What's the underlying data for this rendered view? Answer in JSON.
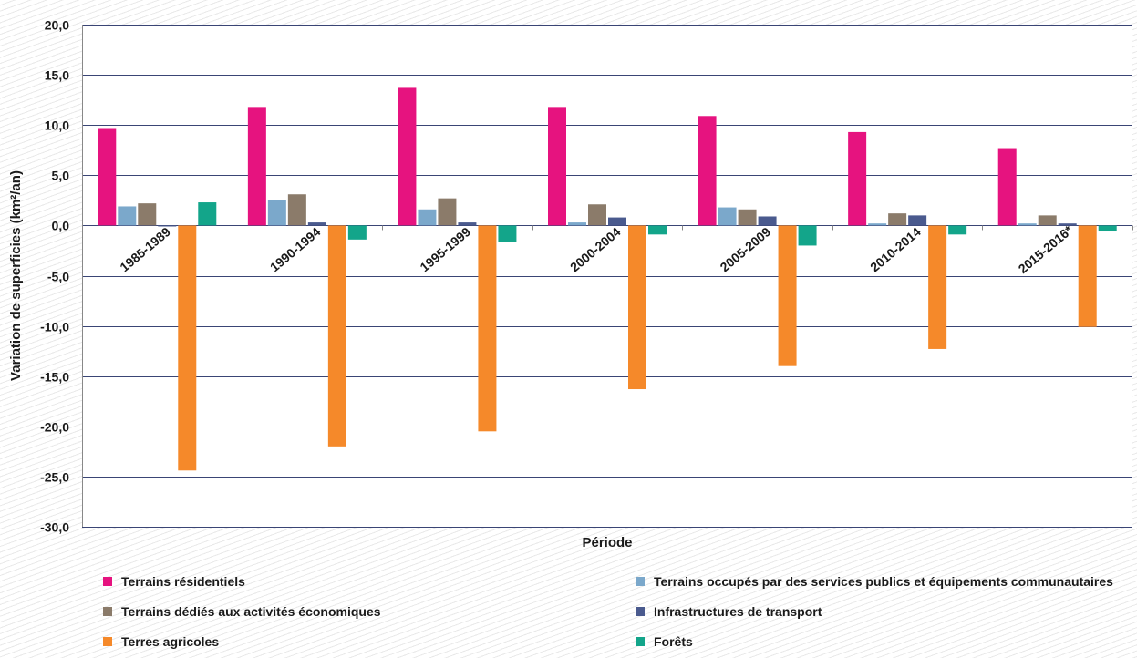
{
  "chart_data": {
    "type": "bar",
    "title": "",
    "xlabel": "Période",
    "ylabel": "Variation de superficies (km²/an)",
    "ylim": [
      -30,
      20
    ],
    "ytick_step": 5,
    "grid": true,
    "legend_position": "bottom",
    "categories": [
      "1985-1989",
      "1990-1994",
      "1995-1999",
      "2000-2004",
      "2005-2009",
      "2010-2014",
      "2015-2016*"
    ],
    "ytick_labels": [
      "20,0",
      "15,0",
      "10,0",
      "5,0",
      "0,0",
      "-5,0",
      "-10,0",
      "-15,0",
      "-20,0",
      "-25,0",
      "-30,0"
    ],
    "series": [
      {
        "name": "Terrains résidentiels",
        "color": "#e6137f",
        "values": [
          9.7,
          11.8,
          13.7,
          11.8,
          10.9,
          9.3,
          7.7
        ]
      },
      {
        "name": "Terrains occupés par des services publics et équipements communautaires",
        "color": "#7ba8cb",
        "values": [
          1.9,
          2.5,
          1.6,
          0.3,
          1.8,
          0.2,
          0.2
        ]
      },
      {
        "name": "Terrains dédiés aux activités économiques",
        "color": "#8b7b6a",
        "values": [
          2.2,
          3.1,
          2.7,
          2.1,
          1.6,
          1.2,
          1.0
        ]
      },
      {
        "name": "Infrastructures de transport",
        "color": "#4a5a8e",
        "values": [
          -0.1,
          0.3,
          0.3,
          0.8,
          0.9,
          1.0,
          0.2
        ]
      },
      {
        "name": "Terres agricoles",
        "color": "#f5892a",
        "values": [
          -24.4,
          -22.0,
          -20.5,
          -16.3,
          -14.0,
          -12.3,
          -10.1
        ]
      },
      {
        "name": "Forêts",
        "color": "#13a58a",
        "values": [
          2.3,
          -1.4,
          -1.6,
          -0.9,
          -2.0,
          -0.9,
          -0.6
        ]
      }
    ]
  }
}
